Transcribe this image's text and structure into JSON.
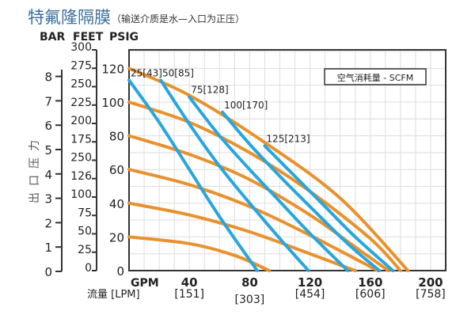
{
  "title": "特氟隆隔膜",
  "subtitle": "（输送介质是水—入口为正压）",
  "chart_data": {
    "type": "line",
    "axis_headers": [
      "BAR",
      "FEET",
      "PSIG"
    ],
    "ylabel": "出口压力",
    "xlabel_primary": "GPM",
    "xlabel_secondary": "流量 [LPM]",
    "bar_ticks": [
      "0",
      "1",
      "2",
      "3",
      "4",
      "5",
      "6",
      "7",
      "8"
    ],
    "feet_ticks": [
      "0",
      "25",
      "50",
      "75",
      "100",
      "126",
      "250",
      "175",
      "200",
      "225",
      "250",
      "275",
      "300"
    ],
    "psig_ticks": [
      "0",
      "20",
      "40",
      "60",
      "80",
      "100",
      "120"
    ],
    "x_ticks": [
      {
        "gpm": "40",
        "lpm": "[151]"
      },
      {
        "gpm": "80",
        "lpm": "[303]"
      },
      {
        "gpm": "120",
        "lpm": "[454]"
      },
      {
        "gpm": "160",
        "lpm": "[606]"
      },
      {
        "gpm": "200",
        "lpm": "[758]"
      }
    ],
    "xlim": [
      0,
      210
    ],
    "ylim": [
      0,
      131
    ],
    "grid": true,
    "legend": {
      "label": "空气消耗量 - SCFM",
      "placement": "top-right"
    },
    "colors": {
      "pressure_lines": "#e8922e",
      "air_lines": "#27a6dd",
      "title": "#3d6f9c"
    },
    "pressure_series": [
      {
        "points": [
          [
            0,
            120
          ],
          [
            40,
            104
          ],
          [
            90,
            76
          ],
          [
            140,
            43
          ],
          [
            185,
            0
          ]
        ]
      },
      {
        "points": [
          [
            0,
            100
          ],
          [
            40,
            88
          ],
          [
            80,
            70
          ],
          [
            120,
            47
          ],
          [
            160,
            19
          ],
          [
            180,
            0
          ]
        ]
      },
      {
        "points": [
          [
            0,
            80
          ],
          [
            40,
            69
          ],
          [
            80,
            54
          ],
          [
            120,
            33
          ],
          [
            150,
            14
          ],
          [
            172,
            0
          ]
        ]
      },
      {
        "points": [
          [
            0,
            60
          ],
          [
            40,
            51
          ],
          [
            80,
            38
          ],
          [
            120,
            21
          ],
          [
            165,
            0
          ]
        ]
      },
      {
        "points": [
          [
            0,
            40
          ],
          [
            40,
            33
          ],
          [
            80,
            23
          ],
          [
            120,
            10
          ],
          [
            150,
            0
          ]
        ]
      },
      {
        "points": [
          [
            0,
            20
          ],
          [
            40,
            16
          ],
          [
            70,
            9
          ],
          [
            93,
            0
          ]
        ]
      }
    ],
    "air_series": [
      {
        "name": "25[43]",
        "points": [
          [
            0,
            113
          ],
          [
            20,
            88
          ],
          [
            40,
            60
          ],
          [
            60,
            32
          ],
          [
            85,
            0
          ]
        ]
      },
      {
        "name": "50[85]",
        "points": [
          [
            21,
            113
          ],
          [
            40,
            87
          ],
          [
            60,
            62
          ],
          [
            80,
            40
          ],
          [
            100,
            19
          ],
          [
            119,
            0
          ]
        ]
      },
      {
        "name": "75[128]",
        "points": [
          [
            40,
            103
          ],
          [
            60,
            80
          ],
          [
            80,
            60
          ],
          [
            100,
            41
          ],
          [
            120,
            22
          ],
          [
            145,
            0
          ]
        ]
      },
      {
        "name": "100[170]",
        "points": [
          [
            62,
            94
          ],
          [
            80,
            75
          ],
          [
            100,
            56
          ],
          [
            120,
            38
          ],
          [
            145,
            16
          ],
          [
            166,
            0
          ]
        ]
      },
      {
        "name": "125[213]",
        "points": [
          [
            90,
            74
          ],
          [
            110,
            56
          ],
          [
            130,
            38
          ],
          [
            150,
            20
          ],
          [
            175,
            0
          ]
        ]
      }
    ]
  }
}
